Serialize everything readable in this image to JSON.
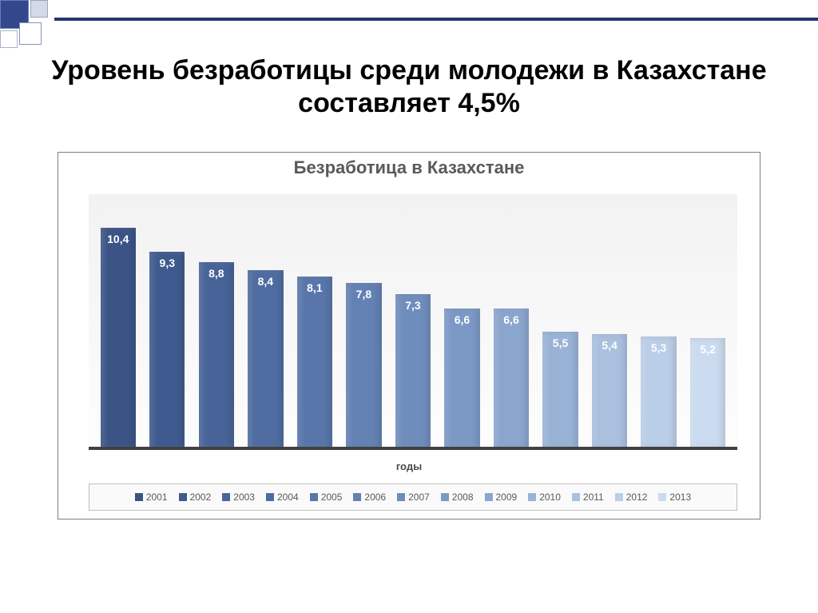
{
  "slide": {
    "main_title": "Уровень безработицы среди молодежи в Казахстане составляет 4,5%",
    "main_title_fontsize": 34,
    "main_title_color": "#000000"
  },
  "chart": {
    "type": "bar",
    "title": "Безработица в Казахстане",
    "title_fontsize": 22,
    "title_color": "#595959",
    "x_axis_title": "годы",
    "x_axis_title_fontsize": 13,
    "background_gradient_top": "#f2f2f2",
    "background_gradient_bottom": "#fdfdfd",
    "axis_line_color": "#404040",
    "frame_border_color": "#7f7f7f",
    "ylim": [
      0,
      12
    ],
    "bar_label_fontsize": 14,
    "bar_label_color": "#ffffff",
    "legend_border_color": "#bfbfbf",
    "legend_fontsize": 12,
    "series": [
      {
        "year": "2001",
        "value": 10.4,
        "label": "10,4",
        "color": "#3a5486"
      },
      {
        "year": "2002",
        "value": 9.3,
        "label": "9,3",
        "color": "#3f5a8e"
      },
      {
        "year": "2003",
        "value": 8.8,
        "label": "8,8",
        "color": "#476398"
      },
      {
        "year": "2004",
        "value": 8.4,
        "label": "8,4",
        "color": "#4f6ca1"
      },
      {
        "year": "2005",
        "value": 8.1,
        "label": "8,1",
        "color": "#5876aa"
      },
      {
        "year": "2006",
        "value": 7.8,
        "label": "7,8",
        "color": "#6381b3"
      },
      {
        "year": "2007",
        "value": 7.3,
        "label": "7,3",
        "color": "#6f8dbc"
      },
      {
        "year": "2008",
        "value": 6.6,
        "label": "6,6",
        "color": "#7c99c5"
      },
      {
        "year": "2009",
        "value": 6.6,
        "label": "6,6",
        "color": "#8aa6ce"
      },
      {
        "year": "2010",
        "value": 5.5,
        "label": "5,5",
        "color": "#99b3d7"
      },
      {
        "year": "2011",
        "value": 5.4,
        "label": "5,4",
        "color": "#a9c0df"
      },
      {
        "year": "2012",
        "value": 5.3,
        "label": "5,3",
        "color": "#bacee7"
      },
      {
        "year": "2013",
        "value": 5.2,
        "label": "5,2",
        "color": "#cbdbef"
      }
    ]
  }
}
